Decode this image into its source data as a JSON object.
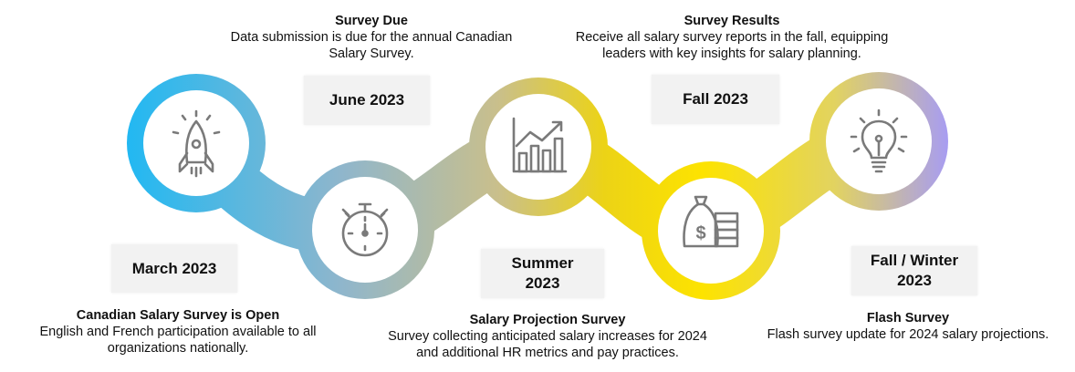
{
  "milestones": [
    {
      "date": "March 2023",
      "title": "Canadian Salary Survey is Open",
      "desc": "English and French participation available to all organizations nationally.",
      "icon": "rocket-icon"
    },
    {
      "date": "June 2023",
      "title": "Survey Due",
      "desc": "Data submission is due for the annual Canadian Salary Survey.",
      "icon": "stopwatch-icon"
    },
    {
      "date": "Summer 2023",
      "title": "Salary Projection Survey",
      "desc": "Survey collecting anticipated salary increases for 2024 and additional HR metrics and pay practices.",
      "icon": "growth-chart-icon"
    },
    {
      "date": "Fall 2023",
      "title": "Survey Results",
      "desc": "Receive all salary survey reports in the fall, equipping leaders with key insights for salary planning.",
      "icon": "money-bag-icon"
    },
    {
      "date": "Fall / Winter 2023",
      "title": "Flash Survey",
      "desc": "Flash survey update for 2024 salary projections.",
      "icon": "lightbulb-icon"
    }
  ],
  "colors": {
    "gradient": [
      "#22b8f2",
      "#8fb6cc",
      "#c9bf8c",
      "#ecd316",
      "#fde300",
      "#e2d360",
      "#a79cf3"
    ],
    "icon": "#7a7a7a"
  }
}
